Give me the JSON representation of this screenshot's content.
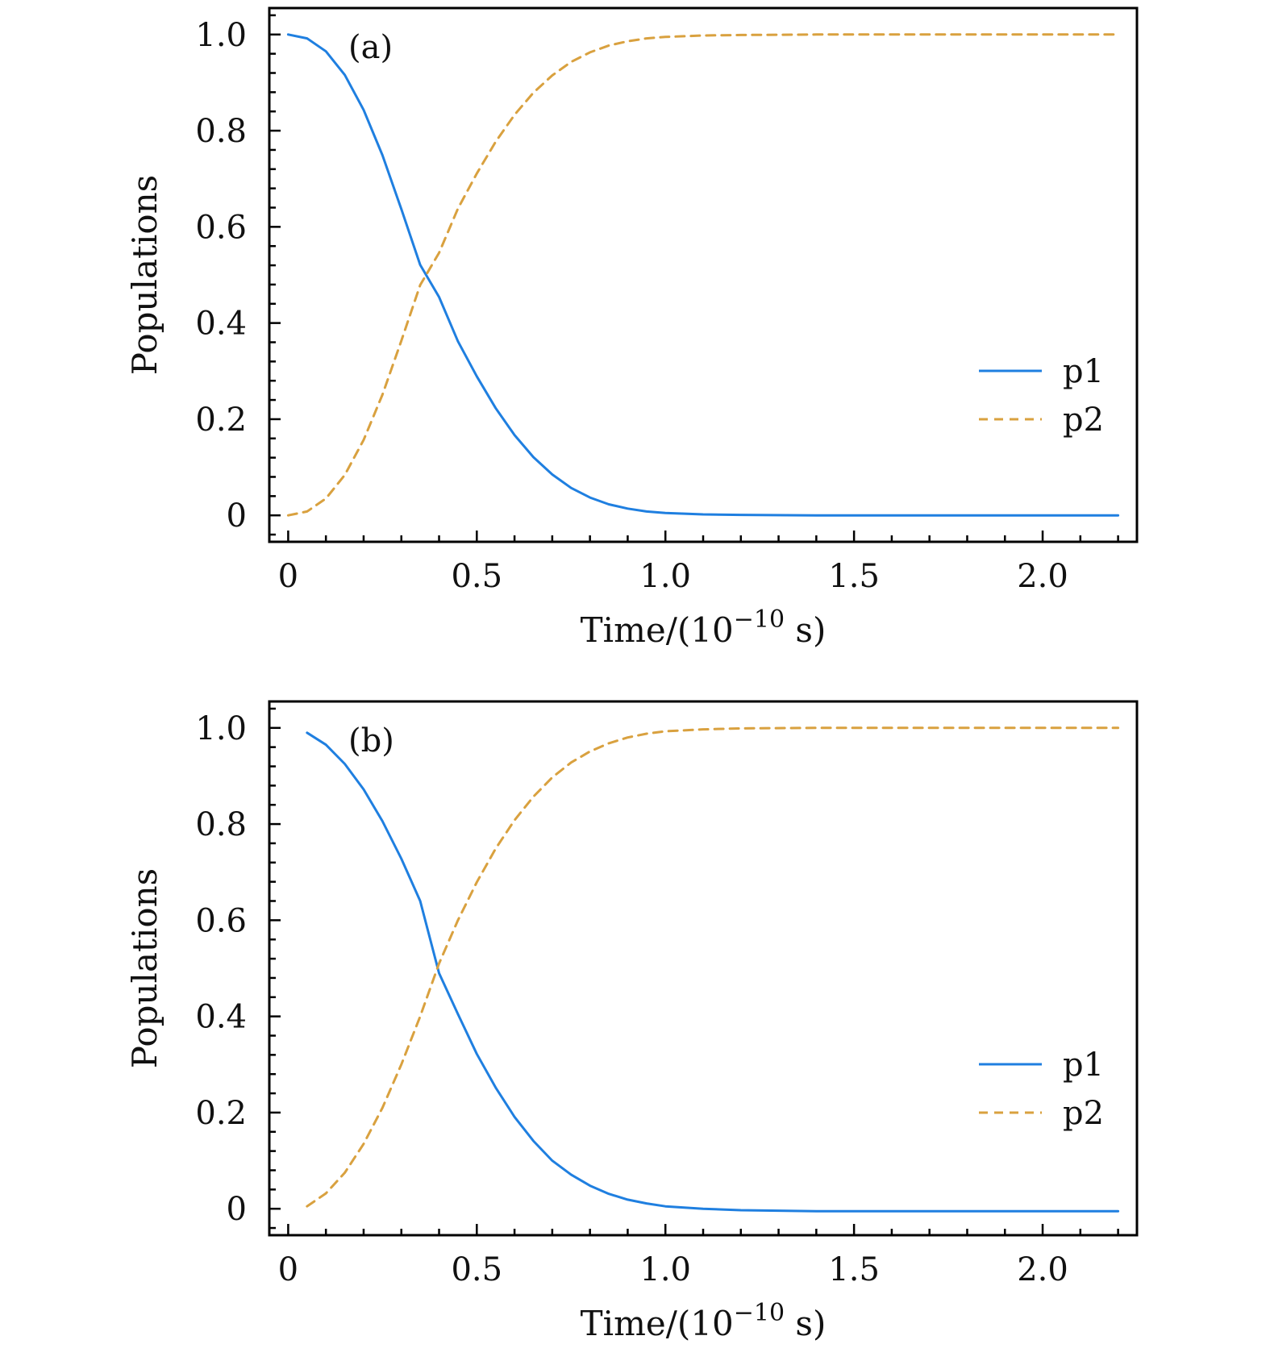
{
  "chart_data": [
    {
      "type": "line",
      "panel_label": "(a)",
      "xlabel": "Time/(10",
      "xlabel_exponent": "−10",
      "xlabel_suffix": " s)",
      "ylabel": "Populations",
      "xlim": [
        -0.05,
        2.25
      ],
      "ylim": [
        -0.055,
        1.055
      ],
      "xticks": [
        0,
        0.5,
        1.0,
        1.5,
        2.0
      ],
      "xtick_labels": [
        "0",
        "0.5",
        "1.0",
        "1.5",
        "2.0"
      ],
      "yticks": [
        0,
        0.2,
        0.4,
        0.6,
        0.8,
        1.0
      ],
      "ytick_labels": [
        "0",
        "0.2",
        "0.4",
        "0.6",
        "0.8",
        "1.0"
      ],
      "x": [
        0,
        0.05,
        0.1,
        0.15,
        0.2,
        0.25,
        0.3,
        0.35,
        0.4,
        0.45,
        0.5,
        0.55,
        0.6,
        0.65,
        0.7,
        0.75,
        0.8,
        0.85,
        0.9,
        0.95,
        1.0,
        1.1,
        1.2,
        1.4,
        1.6,
        1.8,
        2.0,
        2.2
      ],
      "series": [
        {
          "name": "p1",
          "color": "#1f7fe0",
          "dash": "solid",
          "values": [
            1.0,
            0.992,
            0.965,
            0.916,
            0.843,
            0.749,
            0.637,
            0.521,
            0.454,
            0.362,
            0.289,
            0.223,
            0.167,
            0.121,
            0.085,
            0.057,
            0.037,
            0.023,
            0.014,
            0.008,
            0.005,
            0.002,
            0.001,
            0.0,
            0.0,
            0.0,
            0.0,
            0.0
          ]
        },
        {
          "name": "p2",
          "color": "#d9a13f",
          "dash": "dashed",
          "values": [
            0.0,
            0.008,
            0.035,
            0.084,
            0.157,
            0.251,
            0.363,
            0.479,
            0.546,
            0.638,
            0.711,
            0.777,
            0.833,
            0.879,
            0.915,
            0.943,
            0.963,
            0.977,
            0.986,
            0.992,
            0.995,
            0.998,
            0.999,
            1.0,
            1.0,
            1.0,
            1.0,
            1.0
          ]
        }
      ],
      "legend": [
        "p1",
        "p2"
      ],
      "legend_position": "center-right"
    },
    {
      "type": "line",
      "panel_label": "(b)",
      "xlabel": "Time/(10",
      "xlabel_exponent": "−10",
      "xlabel_suffix": " s)",
      "ylabel": "Populations",
      "xlim": [
        -0.05,
        2.25
      ],
      "ylim": [
        -0.055,
        1.055
      ],
      "xticks": [
        0,
        0.5,
        1.0,
        1.5,
        2.0
      ],
      "xtick_labels": [
        "0",
        "0.5",
        "1.0",
        "1.5",
        "2.0"
      ],
      "yticks": [
        0,
        0.2,
        0.4,
        0.6,
        0.8,
        1.0
      ],
      "ytick_labels": [
        "0",
        "0.2",
        "0.4",
        "0.6",
        "0.8",
        "1.0"
      ],
      "x": [
        0.05,
        0.1,
        0.15,
        0.2,
        0.25,
        0.3,
        0.35,
        0.4,
        0.45,
        0.5,
        0.55,
        0.6,
        0.65,
        0.7,
        0.75,
        0.8,
        0.85,
        0.9,
        0.95,
        1.0,
        1.1,
        1.2,
        1.4,
        1.6,
        1.8,
        2.0,
        2.2
      ],
      "series": [
        {
          "name": "p1",
          "color": "#1f7fe0",
          "dash": "solid",
          "values": [
            0.99,
            0.965,
            0.925,
            0.872,
            0.806,
            0.728,
            0.64,
            0.49,
            0.405,
            0.322,
            0.252,
            0.191,
            0.141,
            0.1,
            0.071,
            0.048,
            0.031,
            0.019,
            0.011,
            0.005,
            0.0,
            -0.003,
            -0.005,
            -0.005,
            -0.005,
            -0.005,
            -0.005
          ]
        },
        {
          "name": "p2",
          "color": "#d9a13f",
          "dash": "dashed",
          "values": [
            0.005,
            0.032,
            0.075,
            0.135,
            0.21,
            0.3,
            0.4,
            0.51,
            0.6,
            0.679,
            0.749,
            0.808,
            0.857,
            0.897,
            0.928,
            0.951,
            0.968,
            0.98,
            0.988,
            0.993,
            0.997,
            0.999,
            1.0,
            1.0,
            1.0,
            1.0,
            1.0
          ]
        }
      ],
      "legend": [
        "p1",
        "p2"
      ],
      "legend_position": "center-right"
    }
  ]
}
